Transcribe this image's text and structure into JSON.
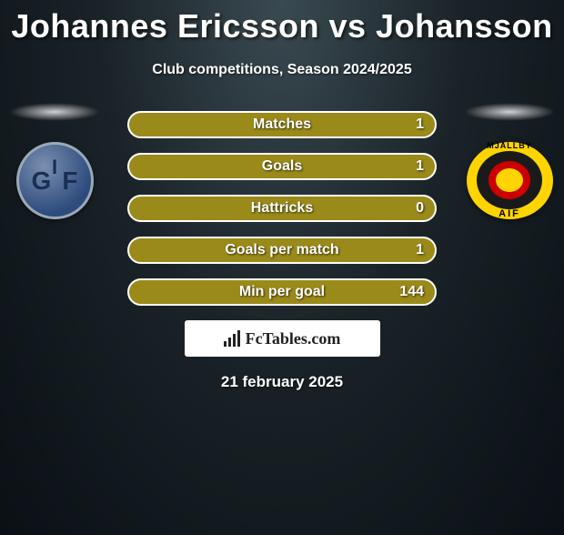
{
  "header": {
    "title": "Johannes Ericsson vs Johansson",
    "subtitle": "Club competitions, Season 2024/2025"
  },
  "left_team": {
    "badge_letters": {
      "top": "I",
      "left": "G",
      "right": "F"
    },
    "colors": {
      "main": "#2d4b7c",
      "highlight": "#7a8fb0",
      "border": "#9aa9b8"
    }
  },
  "right_team": {
    "badge_top": "MJÄLLBY",
    "badge_bottom": "AIF",
    "colors": {
      "yellow": "#ffd400",
      "black": "#1a1a1a",
      "red": "#c00"
    }
  },
  "stats": {
    "bar_bg_color": "#9a8a1a",
    "bar_border_color": "#ffffff",
    "bar_border_radius": 15,
    "label_fontsize": 16,
    "value_fontsize": 16,
    "rows": [
      {
        "label": "Matches",
        "right": "1"
      },
      {
        "label": "Goals",
        "right": "1"
      },
      {
        "label": "Hattricks",
        "right": "0"
      },
      {
        "label": "Goals per match",
        "right": "1"
      },
      {
        "label": "Min per goal",
        "right": "144"
      }
    ]
  },
  "footer": {
    "logo_text": "FcTables.com",
    "date": "21 february 2025"
  }
}
